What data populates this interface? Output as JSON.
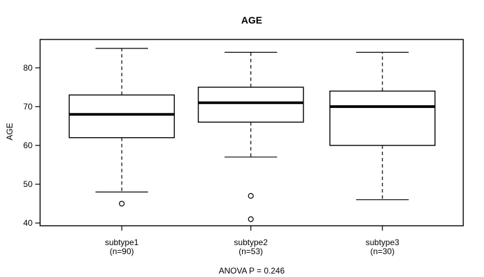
{
  "chart_data": {
    "type": "boxplot",
    "title": "AGE",
    "ylabel": "AGE",
    "anova_note": "ANOVA P = 0.246",
    "ylim": [
      39.3,
      87.3
    ],
    "yticks": [
      40,
      50,
      60,
      70,
      80
    ],
    "grid": false,
    "legend": "none",
    "colors": {
      "line": "#000000",
      "box_fill": "#ffffff",
      "background": "#ffffff"
    },
    "groups": [
      {
        "label": "subtype1",
        "sublabel": "(n=90)",
        "n": 90,
        "whisker_low": 48,
        "q1": 62,
        "median": 68,
        "q3": 73,
        "whisker_high": 85,
        "outliers": [
          45
        ]
      },
      {
        "label": "subtype2",
        "sublabel": "(n=53)",
        "n": 53,
        "whisker_low": 57,
        "q1": 66,
        "median": 71,
        "q3": 75,
        "whisker_high": 84,
        "outliers": [
          47,
          41
        ]
      },
      {
        "label": "subtype3",
        "sublabel": "(n=30)",
        "n": 30,
        "whisker_low": 46,
        "q1": 60,
        "median": 70,
        "q3": 74,
        "whisker_high": 84,
        "outliers": []
      }
    ]
  }
}
